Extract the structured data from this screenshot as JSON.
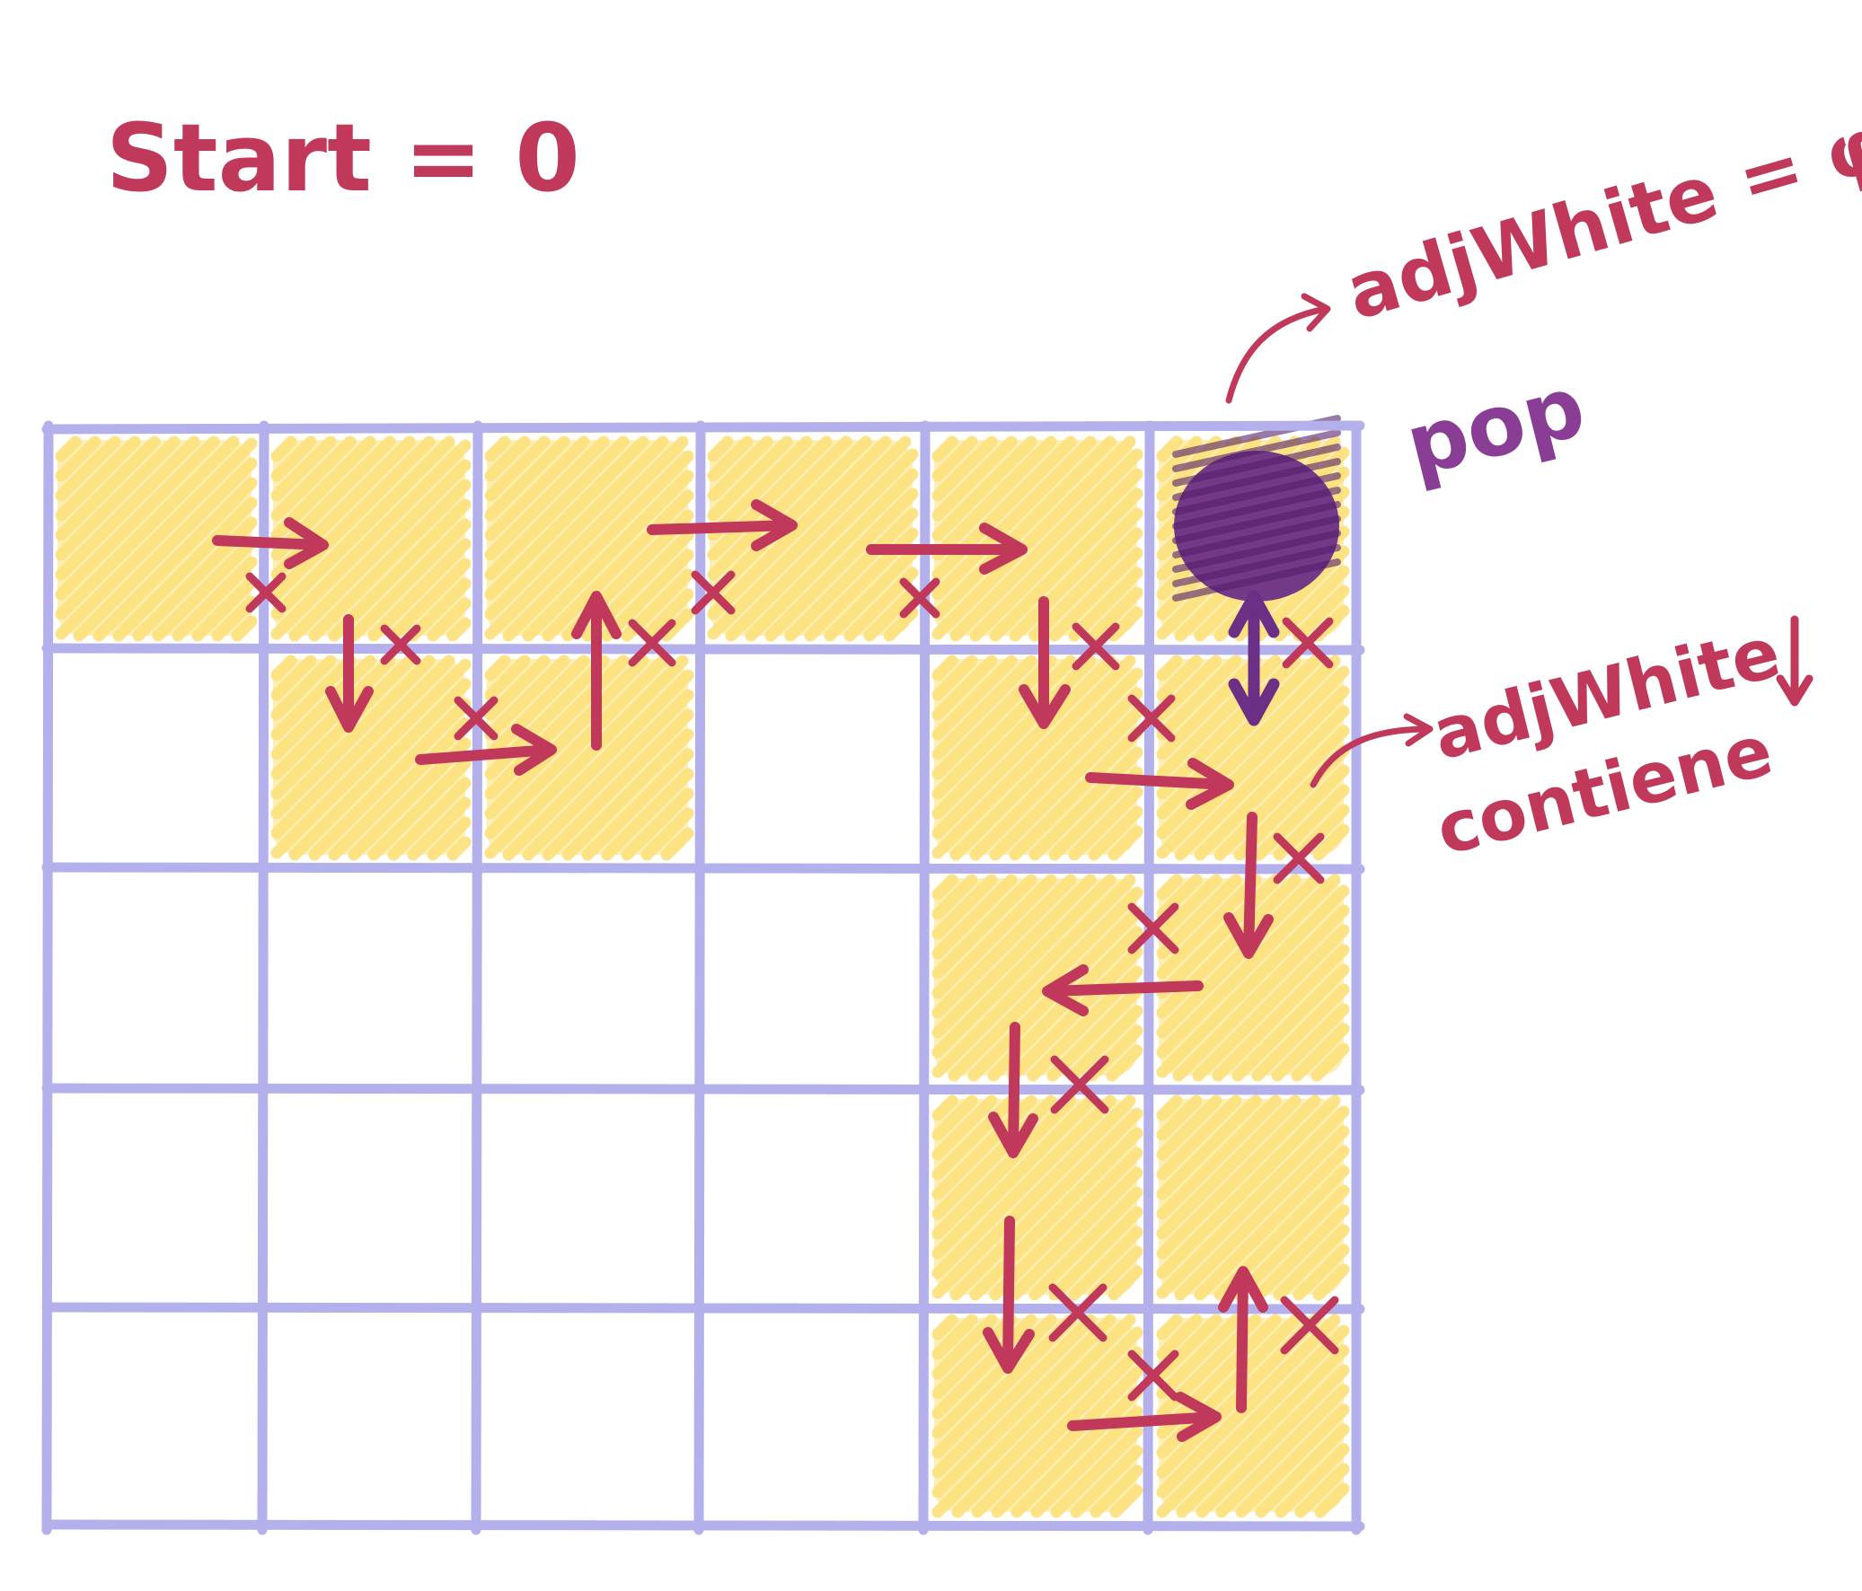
{
  "texts": {
    "start": "Start = 0",
    "adj_empty": "adjWhite = φ",
    "pop": "pop",
    "adj_contains_line1": "adjWhite",
    "adj_contains_line2": "contiene"
  },
  "grid": {
    "rows": 5,
    "cols": 6
  },
  "visited_cells": [
    [
      0,
      0
    ],
    [
      0,
      1
    ],
    [
      0,
      2
    ],
    [
      0,
      3
    ],
    [
      0,
      4
    ],
    [
      0,
      5
    ],
    [
      1,
      1
    ],
    [
      1,
      2
    ],
    [
      1,
      4
    ],
    [
      1,
      5
    ],
    [
      2,
      4
    ],
    [
      2,
      5
    ],
    [
      3,
      4
    ],
    [
      3,
      5
    ],
    [
      4,
      4
    ],
    [
      4,
      5
    ]
  ],
  "popped_cell": [
    0,
    5
  ],
  "colors": {
    "grid": "#b3b0ec",
    "visited": "#fce07a",
    "popped": "#6b2f86",
    "arrow": "#c0385a",
    "pop_text": "#8a3d94"
  }
}
